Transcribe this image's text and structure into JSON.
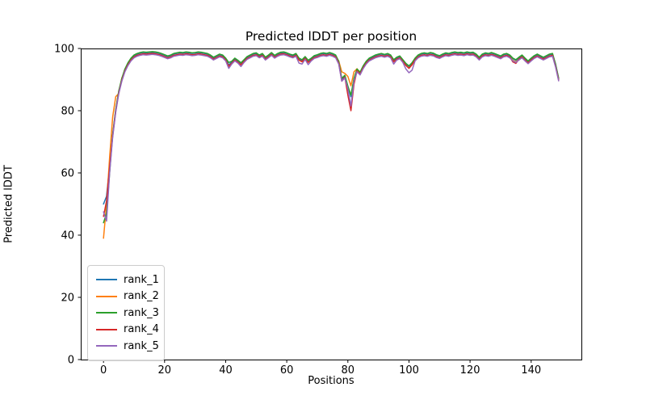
{
  "figure": {
    "background": "#ffffff"
  },
  "chart_data": {
    "type": "line",
    "title": "Predicted lDDT per position",
    "xlabel": "Positions",
    "ylabel": "Predicted lDDT",
    "xlim": [
      -7.45,
      156.45
    ],
    "ylim": [
      0,
      100
    ],
    "x_ticks": [
      0,
      20,
      40,
      60,
      80,
      100,
      120,
      140
    ],
    "y_ticks": [
      0,
      20,
      40,
      60,
      80,
      100
    ],
    "grid": false,
    "legend_position": "lower-left",
    "line_width": 1.5,
    "x_start": 0,
    "series": [
      {
        "name": "rank_1",
        "color": "#1f77b4",
        "values": [
          50,
          52.5,
          62.2,
          72.2,
          80.2,
          86.2,
          90.2,
          93.2,
          95.2,
          96.7,
          97.7,
          98.2,
          98.5,
          98.7,
          98.6,
          98.7,
          98.8,
          98.7,
          98.5,
          98.2,
          97.8,
          97.4,
          97.7,
          98.2,
          98.4,
          98.6,
          98.5,
          98.7,
          98.6,
          98.4,
          98.5,
          98.7,
          98.6,
          98.4,
          98.2,
          97.7,
          97,
          97.5,
          98,
          97.7,
          96.7,
          94.7,
          95.7,
          96.7,
          96,
          95.2,
          96.2,
          97.2,
          97.7,
          98.2,
          98.4,
          97.7,
          98.2,
          97,
          97.7,
          98.5,
          97.6,
          98.2,
          98.6,
          98.7,
          98.4,
          98,
          97.7,
          98.2,
          96.7,
          96.2,
          97.2,
          96,
          96.7,
          97.5,
          97.8,
          98.2,
          98.4,
          98.2,
          98.5,
          98.2,
          97.7,
          95.7,
          89.8,
          91.2,
          87.7,
          84.5,
          90.2,
          93.2,
          92.2,
          94.2,
          95.7,
          96.7,
          97.2,
          97.7,
          98,
          98.2,
          97.9,
          98.2,
          97.7,
          96.2,
          97,
          97.4,
          96.2,
          95,
          94.2,
          95.2,
          96.7,
          97.7,
          98.2,
          98.4,
          98.2,
          98.5,
          98.3,
          97.8,
          97.5,
          98,
          98.4,
          98.2,
          98.5,
          98.7,
          98.5,
          98.6,
          98.4,
          98.7,
          98.5,
          98.6,
          98,
          97,
          98,
          98.4,
          98.2,
          98.5,
          98.2,
          97.8,
          97.4,
          98,
          98.2,
          97.7,
          96.7,
          96.2,
          97,
          97.7,
          96.7,
          95.8,
          96.7,
          97.5,
          98,
          97.5,
          97,
          97.5,
          98,
          98.2,
          95,
          90.2
        ]
      },
      {
        "name": "rank_2",
        "color": "#ff7f0e",
        "values": [
          39,
          50,
          65,
          78,
          84.5,
          85.5,
          90.5,
          92.7,
          94.7,
          96.2,
          97.2,
          97.7,
          98,
          98.2,
          98.1,
          98.2,
          98.3,
          98.2,
          98,
          97.7,
          97.3,
          96.9,
          97.2,
          97.7,
          97.9,
          98.1,
          98,
          98.2,
          98.1,
          97.9,
          98,
          98.2,
          98.1,
          97.9,
          97.7,
          97.2,
          96.5,
          97,
          97.5,
          97.2,
          96.2,
          94.2,
          95.2,
          96.2,
          95.5,
          94.7,
          95.7,
          96.7,
          97.2,
          97.7,
          97.9,
          97.2,
          97.7,
          96.5,
          97.2,
          98,
          97.1,
          97.7,
          98.1,
          98.2,
          97.9,
          97.5,
          97.2,
          97.7,
          96.2,
          95.7,
          96.7,
          95.5,
          96.2,
          97,
          97.3,
          97.7,
          97.9,
          97.7,
          98,
          97.7,
          97.2,
          96,
          92.5,
          92,
          91,
          88,
          92.5,
          93.5,
          91.7,
          93.7,
          95.2,
          96.2,
          96.7,
          97.2,
          97.5,
          97.7,
          97.4,
          97.7,
          97.2,
          95.7,
          96.5,
          96.9,
          95.7,
          94.5,
          93.7,
          94.7,
          96.2,
          97.2,
          97.7,
          97.9,
          97.7,
          98,
          97.8,
          97.3,
          97,
          97.5,
          97.9,
          97.7,
          98,
          98.2,
          98,
          98.1,
          97.9,
          98.2,
          98,
          98.1,
          97.5,
          96.5,
          97.5,
          97.9,
          97.7,
          98,
          97.7,
          97.3,
          96.9,
          97.5,
          97.7,
          97.2,
          96.2,
          95.7,
          96.5,
          97.2,
          96.2,
          95.3,
          96.2,
          97,
          97.5,
          97,
          96.5,
          97,
          97.5,
          97.7,
          94.2,
          89.8
        ]
      },
      {
        "name": "rank_3",
        "color": "#2ca02c",
        "values": [
          44,
          47,
          60,
          72.4,
          80.4,
          86.4,
          90.4,
          93.4,
          95.4,
          96.9,
          97.9,
          98.4,
          98.7,
          98.9,
          98.8,
          98.9,
          99,
          98.9,
          98.7,
          98.4,
          98,
          97.6,
          97.9,
          98.4,
          98.6,
          98.8,
          98.7,
          98.9,
          98.8,
          98.6,
          98.7,
          98.9,
          98.8,
          98.6,
          98.4,
          97.9,
          97.2,
          97.7,
          98.2,
          97.9,
          96.9,
          95.5,
          95.9,
          96.9,
          96.2,
          95.4,
          96.4,
          97.4,
          97.9,
          98.4,
          98.6,
          97.9,
          98.4,
          97.2,
          97.9,
          98.7,
          97.8,
          98.4,
          98.8,
          98.9,
          98.6,
          98.2,
          97.9,
          98.4,
          96.9,
          96.4,
          97.4,
          96.2,
          96.9,
          97.7,
          98,
          98.4,
          98.6,
          98.4,
          98.7,
          98.4,
          97.9,
          95.9,
          90.4,
          91.4,
          87.9,
          85,
          90.4,
          93.4,
          92.4,
          94.4,
          95.9,
          96.9,
          97.4,
          97.9,
          98.2,
          98.4,
          98.1,
          98.4,
          97.9,
          96.4,
          97.2,
          97.6,
          96.4,
          95.2,
          94.4,
          95.4,
          96.9,
          97.9,
          98.4,
          98.6,
          98.4,
          98.7,
          98.5,
          98,
          97.7,
          98.2,
          98.6,
          98.4,
          98.7,
          98.9,
          98.7,
          98.8,
          98.6,
          98.9,
          98.7,
          98.8,
          98.2,
          97.2,
          98.2,
          98.6,
          98.4,
          98.7,
          98.4,
          98,
          97.6,
          98.2,
          98.4,
          97.9,
          96.9,
          96.4,
          97.2,
          97.9,
          96.9,
          96,
          96.9,
          97.7,
          98.2,
          97.7,
          97.2,
          97.7,
          98.2,
          98.4,
          94.9,
          90.5
        ]
      },
      {
        "name": "rank_4",
        "color": "#d62728",
        "values": [
          46,
          51,
          61.8,
          71.8,
          79.8,
          85.8,
          89.8,
          92.8,
          94.8,
          96.3,
          97.3,
          97.8,
          98.1,
          98.3,
          98.2,
          98.3,
          98.4,
          98.3,
          98.1,
          97.8,
          97.4,
          97,
          97.3,
          97.8,
          98,
          98.2,
          98.1,
          98.3,
          98.2,
          98,
          98.1,
          98.3,
          98.2,
          98,
          97.8,
          97.3,
          96.6,
          97.1,
          97.6,
          97.3,
          96.3,
          94.3,
          95.3,
          96.3,
          95.6,
          94.8,
          95.8,
          96.8,
          97.3,
          97.8,
          98,
          97.3,
          97.8,
          96.6,
          97.3,
          98.1,
          97.2,
          97.8,
          98.2,
          98.3,
          98,
          97.6,
          97.3,
          97.8,
          96.3,
          95.8,
          96.8,
          95.6,
          96.3,
          97.1,
          97.4,
          97.8,
          98,
          97.8,
          98.1,
          97.8,
          97.3,
          95.3,
          89.5,
          90.8,
          85,
          80,
          88.5,
          92.8,
          91.8,
          93.8,
          95.3,
          96.3,
          96.8,
          97.3,
          97.6,
          97.8,
          97.5,
          97.8,
          97.3,
          95.8,
          96.6,
          97,
          95.8,
          94.6,
          93.6,
          94.8,
          96.3,
          97.3,
          97.8,
          98,
          97.8,
          98.1,
          97.9,
          97.4,
          97.1,
          97.6,
          98,
          97.8,
          98.1,
          98.3,
          98.1,
          98.2,
          98,
          98.3,
          98.1,
          98.2,
          97.6,
          96.6,
          97.6,
          98,
          97.8,
          98.1,
          97.8,
          97.4,
          97,
          97.6,
          97.8,
          97.3,
          95.7,
          95.2,
          96.6,
          97.3,
          96.3,
          95.4,
          96.3,
          97.1,
          97.6,
          97.1,
          96.6,
          97.1,
          97.6,
          97.8,
          94.3,
          89.9
        ]
      },
      {
        "name": "rank_5",
        "color": "#9467bd",
        "values": [
          47.5,
          44.5,
          60,
          71.5,
          79.5,
          85.5,
          89.5,
          92.5,
          94.5,
          96,
          97,
          97.5,
          97.8,
          98,
          97.9,
          98,
          98.1,
          98,
          97.8,
          97.5,
          97.1,
          96.7,
          97,
          97.5,
          97.7,
          97.9,
          97.8,
          98,
          97.9,
          97.7,
          97.8,
          98,
          97.9,
          97.7,
          97.5,
          97,
          96.3,
          96.8,
          97.3,
          97,
          96,
          93.6,
          95,
          96,
          95.3,
          94.2,
          95.5,
          96.5,
          97,
          97.5,
          97.7,
          97,
          97.5,
          96.3,
          97,
          97.8,
          96.9,
          97.5,
          97.9,
          98,
          97.7,
          97.3,
          97,
          97.5,
          95.3,
          95,
          96.5,
          94.8,
          96,
          96.8,
          97.1,
          97.5,
          97.7,
          97.5,
          97.8,
          97.5,
          97,
          95,
          89.5,
          90.5,
          87,
          81.5,
          89.5,
          92.5,
          91.5,
          93.5,
          95,
          96,
          96.5,
          97,
          97.3,
          97.5,
          97.2,
          97.5,
          97,
          95,
          96.3,
          96.7,
          95.5,
          93.4,
          92.2,
          93,
          96,
          97,
          97.5,
          97.7,
          97.5,
          97.8,
          97.6,
          97.1,
          96.8,
          97.3,
          97.7,
          97.5,
          97.8,
          98,
          97.8,
          97.9,
          97.7,
          98,
          97.8,
          97.9,
          97.3,
          96.3,
          97.3,
          97.7,
          97.5,
          97.8,
          97.5,
          97.1,
          96.7,
          97.3,
          97.5,
          97,
          96,
          95.5,
          96.3,
          97,
          96,
          95.1,
          96,
          96.8,
          97.3,
          96.8,
          96.3,
          96.8,
          97.3,
          97.5,
          94,
          89.6
        ]
      }
    ]
  }
}
